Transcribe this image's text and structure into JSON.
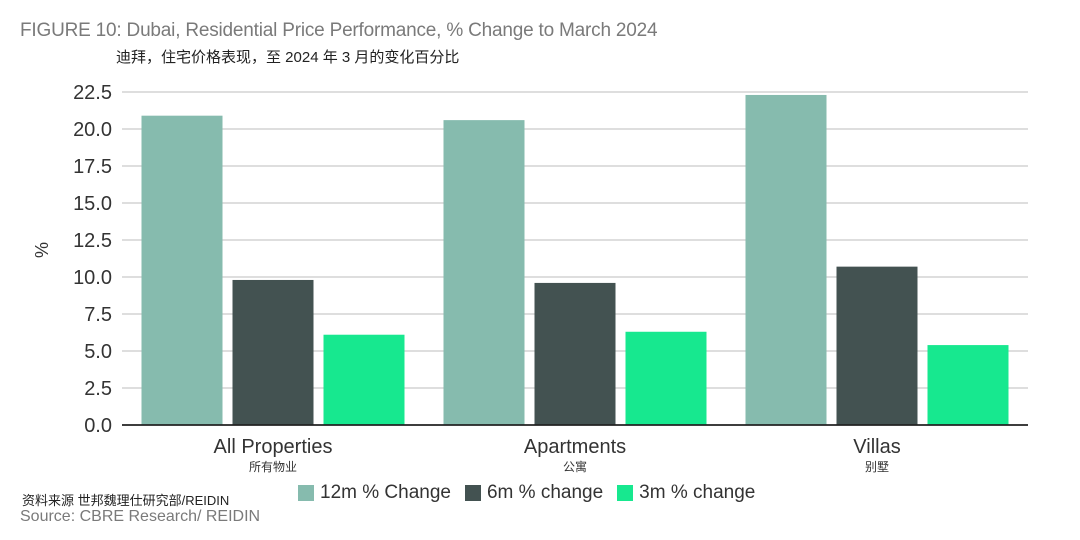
{
  "title": "FIGURE 10: Dubai, Residential Price Performance, % Change to March 2024",
  "subtitle": "迪拜，住宅价格表现，至 2024 年 3 月的变化百分比",
  "source_cn": "资料来源 世邦魏理仕研究部/REIDIN",
  "source_en": "Source: CBRE Research/ REIDIN",
  "chart_data": {
    "type": "bar",
    "title": "FIGURE 10: Dubai, Residential Price Performance, % Change to March 2024",
    "xlabel": "",
    "ylabel": "%",
    "ylim": [
      0,
      22.5
    ],
    "yticks": [
      "0.0",
      "2.5",
      "5.0",
      "7.5",
      "10.0",
      "12.5",
      "15.0",
      "17.5",
      "20.0",
      "22.5"
    ],
    "grid": true,
    "legend_position": "bottom",
    "categories": [
      "All Properties",
      "Apartments",
      "Villas"
    ],
    "categories_cn": [
      "所有物业",
      "公寓",
      "别墅"
    ],
    "series": [
      {
        "name": "12m % Change",
        "color": "#86bbae",
        "values": [
          20.9,
          20.6,
          22.3
        ]
      },
      {
        "name": "6m % change",
        "color": "#435251",
        "values": [
          9.8,
          9.6,
          10.7
        ]
      },
      {
        "name": "3m % change",
        "color": "#17e88f",
        "values": [
          6.1,
          6.3,
          5.4
        ]
      }
    ]
  }
}
